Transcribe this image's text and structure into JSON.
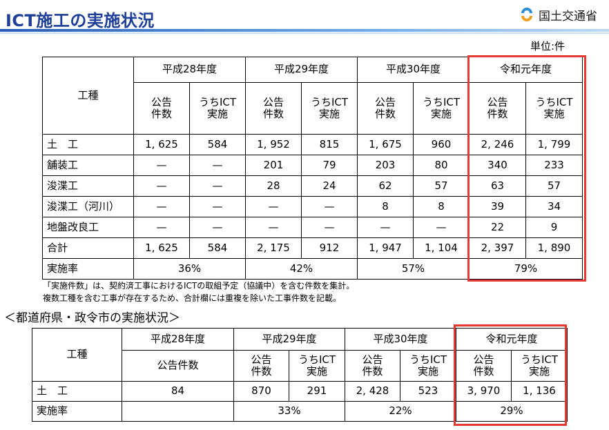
{
  "header": {
    "title": "ICT施工の実施状況",
    "logo_text": "国土交通省",
    "accent": "#1d3f9a"
  },
  "unit": "単位:件",
  "table1": {
    "col_header": "工種",
    "years": [
      "平成28年度",
      "平成29年度",
      "平成30年度",
      "令和元年度"
    ],
    "sub1": "公告\n件数",
    "sub2": "うちICT\n実施",
    "rows": [
      {
        "label": "土　工",
        "cells": [
          "1, 625",
          "584",
          "1, 952",
          "815",
          "1, 675",
          "960",
          "2, 246",
          "1, 799"
        ]
      },
      {
        "label": "舗装工",
        "cells": [
          "—",
          "—",
          "201",
          "79",
          "203",
          "80",
          "340",
          "233"
        ]
      },
      {
        "label": "浚渫工",
        "cells": [
          "—",
          "—",
          "28",
          "24",
          "62",
          "57",
          "63",
          "57"
        ]
      },
      {
        "label": "浚渫工（河川）",
        "cells": [
          "—",
          "—",
          "—",
          "—",
          "8",
          "8",
          "39",
          "34"
        ]
      },
      {
        "label": "地盤改良工",
        "cells": [
          "—",
          "—",
          "—",
          "—",
          "—",
          "—",
          "22",
          "9"
        ]
      },
      {
        "label": "合計",
        "cells": [
          "1, 625",
          "584",
          "2, 175",
          "912",
          "1, 947",
          "1, 104",
          "2, 397",
          "1, 890"
        ]
      }
    ],
    "rate_label": "実施率",
    "rates": [
      "36%",
      "42%",
      "57%",
      "79%"
    ]
  },
  "notes": [
    "「実施件数」は、契約済工事におけるICTの取組予定（協議中）を含む件数を集計。",
    "複数工種を含む工事が存在するため、合計欄には重複を除いた工事件数を記載。"
  ],
  "section_title": "＜都道府県・政令市の実施状況＞",
  "table2": {
    "col_header": "工種",
    "years": [
      "平成28年度",
      "平成29年度",
      "平成30年度",
      "令和元年度"
    ],
    "h28_sub": "公告件数",
    "sub1": "公告\n件数",
    "sub2": "うちICT\n実施",
    "row": {
      "label": "土　工",
      "cells": [
        "84",
        "870",
        "291",
        "2, 428",
        "523",
        "3, 970",
        "1, 136"
      ]
    },
    "rate_label": "実施率",
    "rates": [
      "33%",
      "22%",
      "29%"
    ]
  },
  "highlight_color": "#e53a2e"
}
